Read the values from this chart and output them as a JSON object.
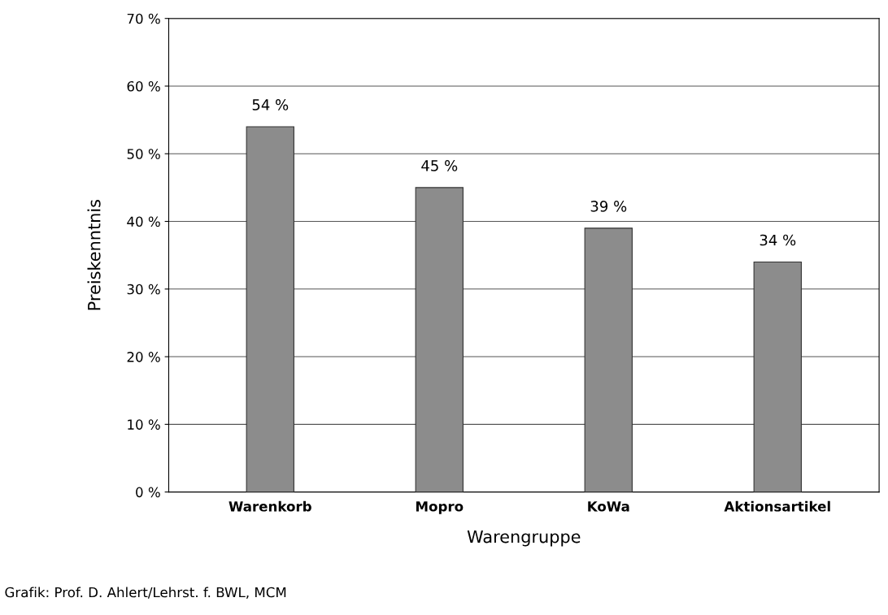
{
  "chart_data": {
    "type": "bar",
    "categories": [
      "Warenkorb",
      "Mopro",
      "KoWa",
      "Aktionsartikel"
    ],
    "values": [
      54,
      45,
      39,
      34
    ],
    "value_labels": [
      "54 %",
      "45 %",
      "39 %",
      "34 %"
    ],
    "color": "#8c8c8c",
    "xlabel": "Warengruppe",
    "ylabel": "Preiskenntnis",
    "ylim": [
      0,
      70
    ],
    "yticks": [
      {
        "value": 0,
        "label": "0 %"
      },
      {
        "value": 10,
        "label": "10 %"
      },
      {
        "value": 20,
        "label": "20 %"
      },
      {
        "value": 30,
        "label": "30 %"
      },
      {
        "value": 40,
        "label": "40 %"
      },
      {
        "value": 50,
        "label": "50 %"
      },
      {
        "value": 60,
        "label": "60 %"
      },
      {
        "value": 70,
        "label": "70 %"
      }
    ],
    "grid": "y",
    "annotations": [
      "Grafik: Prof. D. Ahlert/Lehrst. f. BWL, MCM"
    ]
  }
}
